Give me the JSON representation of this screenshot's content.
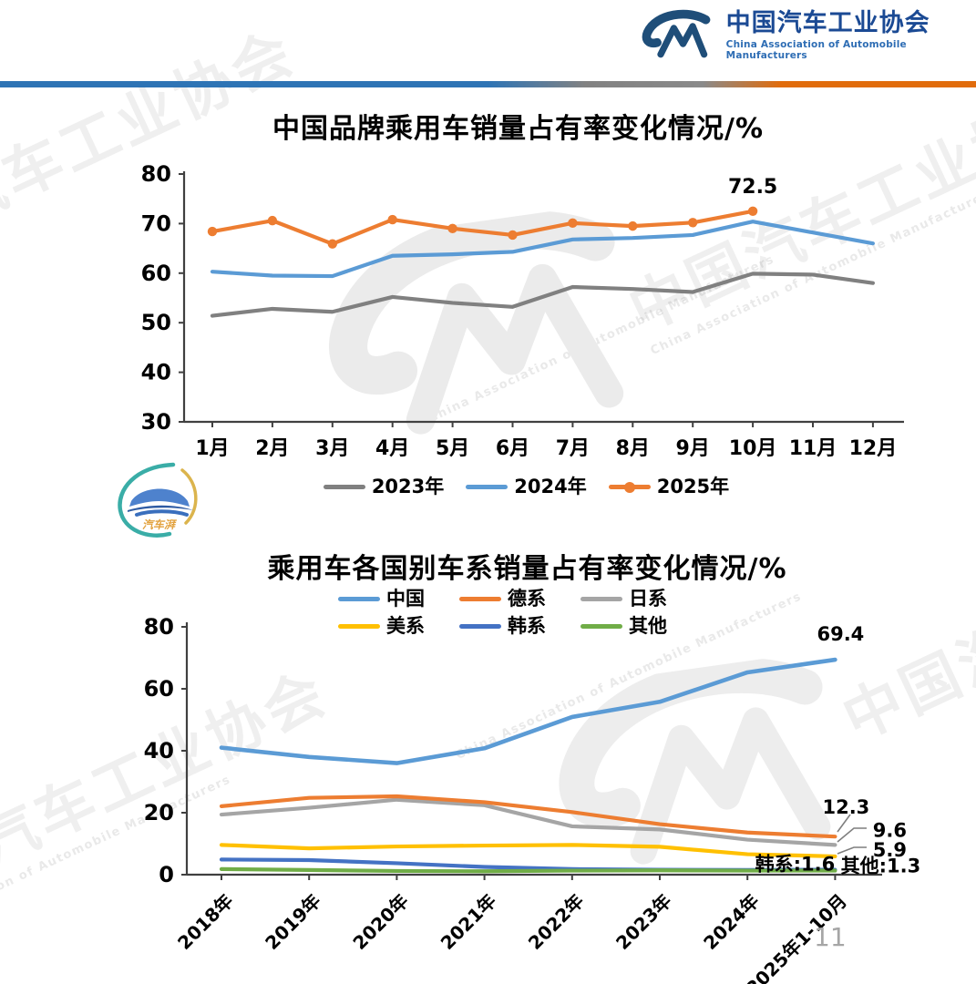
{
  "header": {
    "org_name_cn": "中国汽车工业协会",
    "org_name_en": "China Association of Automobile Manufacturers"
  },
  "watermark": {
    "text_cn": "中国汽车工业协会",
    "text_en": "China Association of Automobile Manufacturers"
  },
  "side_logo": {
    "text": "汽车湃"
  },
  "footer": {
    "page_number": "11"
  },
  "colors": {
    "header_blue": "#1f4e79",
    "divider_blue": "#2e74b5",
    "divider_gray": "#7f7f7f",
    "divider_orange": "#e16c0c",
    "axis": "#404040",
    "page_number_gray": "#a6a6a6"
  },
  "chart_data": [
    {
      "type": "line",
      "title": "中国品牌乘用车销量占有率变化情况/%",
      "categories": [
        "1月",
        "2月",
        "3月",
        "4月",
        "5月",
        "6月",
        "7月",
        "8月",
        "9月",
        "10月",
        "11月",
        "12月"
      ],
      "ylim": [
        30,
        80
      ],
      "yticks": [
        30,
        40,
        50,
        60,
        70,
        80
      ],
      "grid": false,
      "legend_position": "bottom",
      "series": [
        {
          "name": "2023年",
          "color": "#808080",
          "marker": false,
          "values": [
            51.4,
            52.8,
            52.2,
            55.2,
            54.0,
            53.2,
            57.2,
            56.8,
            56.2,
            59.9,
            59.7,
            58.0
          ]
        },
        {
          "name": "2024年",
          "color": "#5b9bd5",
          "marker": false,
          "values": [
            60.3,
            59.5,
            59.4,
            63.5,
            63.8,
            64.3,
            66.8,
            67.1,
            67.7,
            70.4,
            68.2,
            66.0
          ]
        },
        {
          "name": "2025年",
          "color": "#ed7d31",
          "marker": true,
          "values": [
            68.4,
            70.6,
            65.9,
            70.8,
            69.0,
            67.7,
            70.1,
            69.5,
            70.2,
            72.5
          ]
        }
      ],
      "annotations": [
        {
          "series": "2025年",
          "category": "10月",
          "value": 72.5,
          "text": "72.5"
        }
      ]
    },
    {
      "type": "line",
      "title": "乘用车各国别车系销量占有率变化情况/%",
      "categories": [
        "2018年",
        "2019年",
        "2020年",
        "2021年",
        "2022年",
        "2023年",
        "2024年",
        "2025年1-10月"
      ],
      "ylim": [
        0,
        80
      ],
      "yticks": [
        0,
        20,
        40,
        60,
        80
      ],
      "grid": false,
      "legend_position": "top",
      "series": [
        {
          "name": "中国",
          "color": "#5b9bd5",
          "marker": false,
          "values": [
            41.0,
            38.0,
            36.0,
            40.8,
            50.9,
            55.8,
            65.3,
            69.4
          ]
        },
        {
          "name": "德系",
          "color": "#ed7d31",
          "marker": false,
          "values": [
            22.1,
            24.8,
            25.3,
            23.4,
            20.2,
            16.3,
            13.6,
            12.3
          ]
        },
        {
          "name": "日系",
          "color": "#a5a5a5",
          "marker": false,
          "values": [
            19.4,
            21.6,
            24.2,
            22.4,
            15.6,
            14.6,
            11.3,
            9.6
          ]
        },
        {
          "name": "美系",
          "color": "#ffc000",
          "marker": false,
          "values": [
            9.6,
            8.5,
            9.1,
            9.4,
            9.6,
            9.0,
            6.6,
            5.9
          ]
        },
        {
          "name": "韩系",
          "color": "#4472c4",
          "marker": false,
          "values": [
            4.9,
            4.7,
            3.7,
            2.5,
            1.8,
            1.6,
            1.5,
            1.6
          ]
        },
        {
          "name": "其他",
          "color": "#70ad47",
          "marker": false,
          "values": [
            1.8,
            1.5,
            1.2,
            1.1,
            1.3,
            1.4,
            1.3,
            1.3
          ]
        }
      ],
      "end_labels": [
        {
          "series": "中国",
          "text": "69.4"
        },
        {
          "series": "德系",
          "text": "12.3"
        },
        {
          "series": "日系",
          "text": "9.6"
        },
        {
          "series": "美系",
          "text": "5.9"
        },
        {
          "series": "韩系",
          "text": "韩系:1.6"
        },
        {
          "series": "其他",
          "text": "其他:1.3"
        }
      ]
    }
  ]
}
